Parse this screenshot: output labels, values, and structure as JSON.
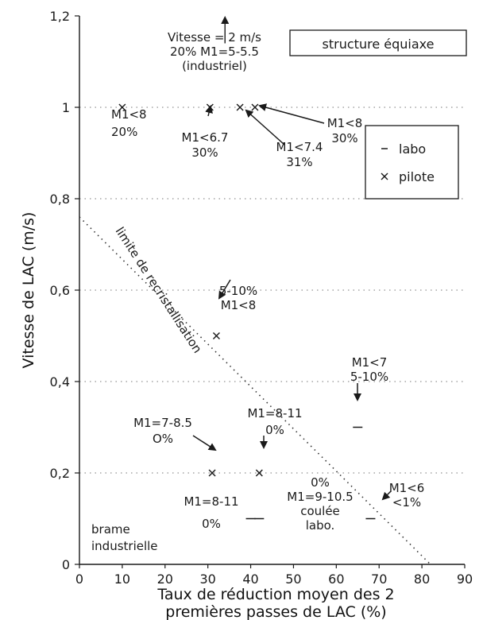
{
  "chart_data": {
    "type": "scatter",
    "title": "",
    "xlabel": "Taux de réduction moyen des 2",
    "xlabel_line2": "premières passes de LAC  (%)",
    "ylabel": "Vitesse de LAC (m/s)",
    "xlim": [
      0,
      90
    ],
    "ylim": [
      0,
      1.2
    ],
    "x_ticks": [
      "0",
      "10",
      "20",
      "30",
      "40",
      "50",
      "60",
      "70",
      "80",
      "90"
    ],
    "y_ticks": [
      "0",
      "0,2",
      "0,4",
      "0,6",
      "0,8",
      "1",
      "1,2"
    ],
    "grid": "dotted horizontal",
    "structure_label": "structure équiaxe",
    "legend_position": "top-right",
    "series": [
      {
        "name": "labo",
        "marker": "-",
        "points": [
          {
            "x": 40,
            "y": 0.1
          },
          {
            "x": 42,
            "y": 0.1
          },
          {
            "x": 65,
            "y": 0.3
          },
          {
            "x": 68,
            "y": 0.1
          }
        ]
      },
      {
        "name": "pilote",
        "marker": "×",
        "points": [
          {
            "x": 10,
            "y": 1.0
          },
          {
            "x": 30.5,
            "y": 1.0
          },
          {
            "x": 37.5,
            "y": 1.0
          },
          {
            "x": 41,
            "y": 1.0
          },
          {
            "x": 32,
            "y": 0.5
          },
          {
            "x": 31,
            "y": 0.2
          },
          {
            "x": 42,
            "y": 0.2
          }
        ]
      }
    ],
    "recrystallization_line": {
      "label": "limite de recristallisation",
      "points": [
        [
          0,
          0.76
        ],
        [
          82,
          0.0
        ]
      ]
    },
    "arrow_up": {
      "x": 34,
      "from": 1.14,
      "to": 1.2
    },
    "annotations": [
      {
        "lines": [
          "Vitesse = 2 m/s",
          "20% M1=5-5.5",
          "(industriel)"
        ]
      },
      {
        "lines": [
          "M1<8",
          "20%"
        ]
      },
      {
        "lines": [
          "M1<6.7",
          "30%"
        ]
      },
      {
        "lines": [
          "M1<7.4",
          "31%"
        ]
      },
      {
        "lines": [
          "M1<8",
          "30%"
        ]
      },
      {
        "lines": [
          "5-10%",
          "M1<8"
        ]
      },
      {
        "lines": [
          "M1<7",
          "5-10%"
        ]
      },
      {
        "lines": [
          "M1=7-8.5",
          "O%"
        ]
      },
      {
        "lines": [
          "M1=8-11",
          "0%"
        ]
      },
      {
        "lines": [
          "0%",
          "M1=9-10.5",
          "coulée",
          "labo."
        ]
      },
      {
        "lines": [
          "M1=8-11",
          "0%"
        ]
      },
      {
        "lines": [
          "M1<6",
          "<1%"
        ]
      },
      {
        "lines": [
          "brame",
          "industrielle"
        ]
      }
    ]
  }
}
